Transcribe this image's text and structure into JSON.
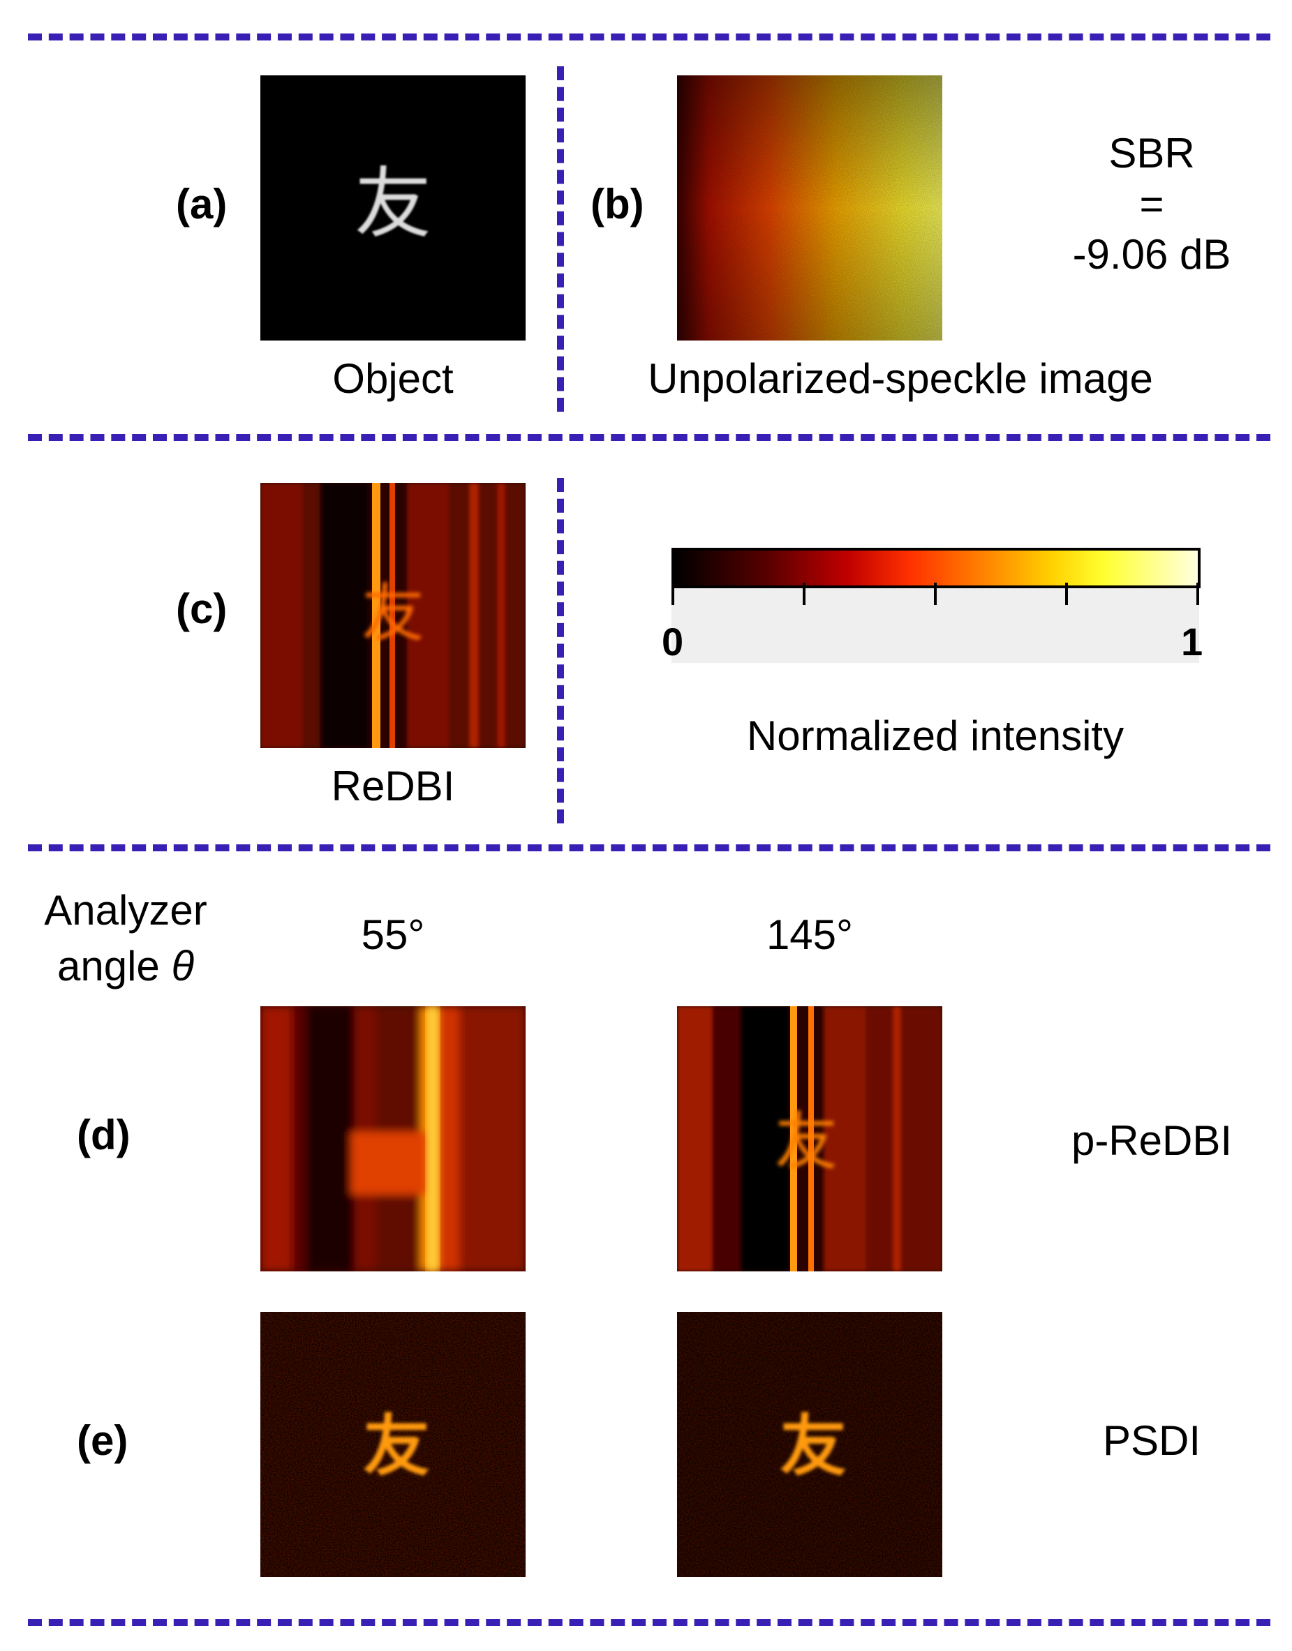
{
  "panels": {
    "a": {
      "label": "(a)",
      "caption": "Object",
      "glyph": "友"
    },
    "b": {
      "label": "(b)",
      "caption": "Unpolarized-speckle image"
    },
    "c": {
      "label": "(c)",
      "caption": "ReDBI",
      "glyph": "友"
    },
    "d": {
      "label": "(d)",
      "row_title": "p-ReDBI",
      "glyph": "友"
    },
    "e": {
      "label": "(e)",
      "row_title": "PSDI",
      "glyph": "友"
    }
  },
  "sbr": {
    "line1": "SBR",
    "line2": "=",
    "line3": "-9.06 dB"
  },
  "colorbar": {
    "min_label": "0",
    "max_label": "1",
    "title": "Normalized intensity",
    "colormap": "hot",
    "ticks": [
      0,
      0.25,
      0.5,
      0.75,
      1
    ]
  },
  "analyzer": {
    "title_line1": "Analyzer",
    "title_line2_prefix": "angle ",
    "title_symbol": "θ",
    "angles": [
      "55°",
      "145°"
    ]
  },
  "colors": {
    "divider": "#3a1fb4",
    "background": "#ffffff"
  }
}
